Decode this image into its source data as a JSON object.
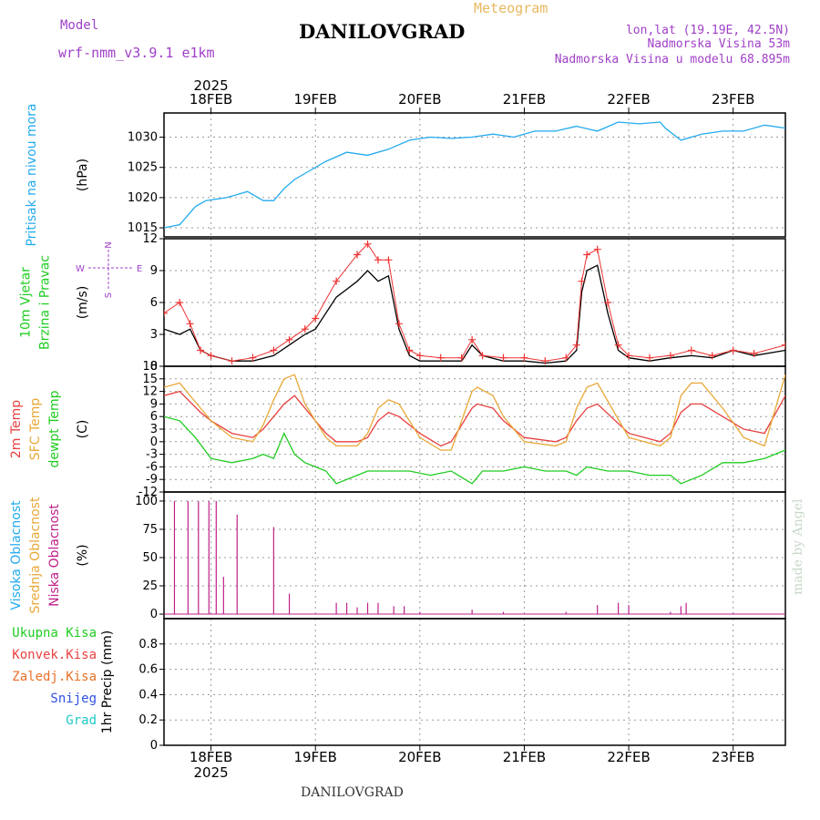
{
  "header": {
    "model_label": "Model",
    "model_name": "wrf-nmm_v3.9.1  e1km",
    "chart_kind": "Meteogram",
    "station": "DANILOVGRAD",
    "lonlat": "lon,lat (19.19E, 42.5N)",
    "elevation": "Nadmorska Visina 53m",
    "model_elevation": "Nadmorska Visina u modelu 68.895m"
  },
  "footer": {
    "station": "DANILOVGRAD",
    "credit": "made by Angel"
  },
  "colors": {
    "pressure": "#22aaee",
    "wind_speed": "#000000",
    "wind_gust": "#ee3333",
    "temp2m": "#e84040",
    "sfc_temp": "#e8a838",
    "dewpoint": "#20cc20",
    "low_cloud": "#c0208a",
    "grid": "#999999"
  },
  "chart_data": {
    "type": "line",
    "x_axis": {
      "year": "2025",
      "range_days": [
        17.55,
        23.5
      ],
      "tick_labels": [
        "18FEB",
        "19FEB",
        "20FEB",
        "21FEB",
        "22FEB",
        "23FEB"
      ],
      "tick_days": [
        18,
        19,
        20,
        21,
        22,
        23
      ]
    },
    "panels": [
      {
        "id": "pressure",
        "ylabel_lines": [
          "Pritisak na nivou mora"
        ],
        "ylabel_colors": [
          "#22aaee"
        ],
        "unit": "(hPa)",
        "ylim": [
          1013.5,
          1034
        ],
        "yticks": [
          1015,
          1020,
          1025,
          1030
        ],
        "series": [
          {
            "key": "pressure",
            "x": [
              17.55,
              17.7,
              17.85,
              17.95,
              18.15,
              18.35,
              18.5,
              18.6,
              18.7,
              18.8,
              18.95,
              19.1,
              19.3,
              19.5,
              19.7,
              19.9,
              20.1,
              20.3,
              20.5,
              20.7,
              20.9,
              21.1,
              21.3,
              21.5,
              21.7,
              21.9,
              22.1,
              22.3,
              22.35,
              22.5,
              22.7,
              22.9,
              23.1,
              23.3,
              23.5
            ],
            "y": [
              1015,
              1015.5,
              1018.5,
              1019.5,
              1020,
              1021,
              1019.5,
              1019.5,
              1021.5,
              1023,
              1024.5,
              1026,
              1027.5,
              1027,
              1028,
              1029.5,
              1030,
              1029.8,
              1030,
              1030.5,
              1030,
              1031,
              1031,
              1031.8,
              1031,
              1032.5,
              1032.2,
              1032.5,
              1031.5,
              1029.5,
              1030.5,
              1031,
              1031,
              1032,
              1031.5
            ]
          }
        ]
      },
      {
        "id": "wind",
        "ylabel_lines": [
          "10m Vjetar",
          "Brzina i Pravac"
        ],
        "ylabel_colors": [
          "#20cc20",
          "#20cc20"
        ],
        "unit": "(m/s)",
        "compass": [
          "N",
          "E",
          "S",
          "W"
        ],
        "ylim": [
          0,
          12
        ],
        "yticks": [
          0,
          3,
          6,
          9,
          12
        ],
        "series": [
          {
            "key": "wind_speed",
            "x": [
              17.55,
              17.7,
              17.8,
              17.9,
              18.0,
              18.2,
              18.4,
              18.6,
              18.75,
              18.9,
              19.0,
              19.2,
              19.4,
              19.5,
              19.6,
              19.7,
              19.8,
              19.9,
              20.0,
              20.2,
              20.4,
              20.5,
              20.6,
              20.8,
              21.0,
              21.2,
              21.4,
              21.5,
              21.55,
              21.6,
              21.7,
              21.8,
              21.9,
              22.0,
              22.2,
              22.4,
              22.6,
              22.8,
              23.0,
              23.2,
              23.5
            ],
            "y": [
              3.5,
              3.0,
              3.5,
              1.5,
              1.0,
              0.5,
              0.5,
              1.0,
              2.0,
              3.0,
              3.5,
              6.5,
              8.0,
              9.0,
              8.0,
              8.5,
              3.5,
              1.0,
              0.5,
              0.5,
              0.5,
              2.0,
              1.0,
              0.5,
              0.5,
              0.3,
              0.5,
              1.5,
              7.0,
              9.0,
              9.5,
              5.0,
              1.5,
              0.8,
              0.5,
              0.8,
              1.0,
              0.8,
              1.5,
              1.0,
              1.5
            ]
          },
          {
            "key": "wind_gust",
            "x": [
              17.55,
              17.7,
              17.8,
              17.9,
              18.0,
              18.2,
              18.4,
              18.6,
              18.75,
              18.9,
              19.0,
              19.2,
              19.4,
              19.5,
              19.6,
              19.7,
              19.8,
              19.9,
              20.0,
              20.2,
              20.4,
              20.5,
              20.6,
              20.8,
              21.0,
              21.2,
              21.4,
              21.5,
              21.55,
              21.6,
              21.7,
              21.8,
              21.9,
              22.0,
              22.2,
              22.4,
              22.6,
              22.8,
              23.0,
              23.2,
              23.5
            ],
            "y": [
              5.0,
              6.0,
              4.0,
              1.5,
              1.0,
              0.5,
              0.8,
              1.5,
              2.5,
              3.5,
              4.5,
              8.0,
              10.5,
              11.5,
              10.0,
              10.0,
              4.0,
              1.5,
              1.0,
              0.8,
              0.8,
              2.5,
              1.0,
              0.8,
              0.8,
              0.5,
              0.8,
              2.0,
              8.0,
              10.5,
              11.0,
              6.0,
              2.0,
              1.0,
              0.8,
              1.0,
              1.5,
              1.0,
              1.5,
              1.2,
              2.0
            ]
          }
        ]
      },
      {
        "id": "temperature",
        "ylabel_lines": [
          "2m Temp",
          "SFC Temp",
          "dewpt Temp"
        ],
        "ylabel_colors": [
          "#e84040",
          "#e8a838",
          "#20cc20"
        ],
        "unit": "(C)",
        "ylim": [
          -12,
          18
        ],
        "yticks": [
          -12,
          -9,
          -6,
          -3,
          0,
          3,
          6,
          9,
          12,
          15,
          18
        ],
        "series": [
          {
            "key": "temp2m",
            "x": [
              17.55,
              17.7,
              17.9,
              18.0,
              18.2,
              18.4,
              18.5,
              18.6,
              18.7,
              18.8,
              18.9,
              19.1,
              19.2,
              19.4,
              19.5,
              19.6,
              19.7,
              19.8,
              20.0,
              20.2,
              20.3,
              20.4,
              20.5,
              20.55,
              20.7,
              20.8,
              21.0,
              21.3,
              21.4,
              21.5,
              21.6,
              21.7,
              22.0,
              22.3,
              22.4,
              22.5,
              22.6,
              22.7,
              22.9,
              23.1,
              23.3,
              23.5
            ],
            "y": [
              11,
              12,
              7,
              5,
              2,
              1,
              3,
              6,
              9,
              11,
              8,
              2,
              0,
              0,
              1,
              5,
              7,
              6,
              2,
              -1,
              0,
              4,
              8,
              9,
              8,
              5,
              1,
              0,
              1,
              5,
              8,
              9,
              2,
              0,
              2,
              7,
              9,
              9,
              6,
              3,
              2,
              11
            ]
          },
          {
            "key": "sfc_temp",
            "x": [
              17.55,
              17.7,
              17.9,
              18.0,
              18.2,
              18.4,
              18.5,
              18.6,
              18.7,
              18.8,
              18.9,
              19.1,
              19.2,
              19.4,
              19.5,
              19.6,
              19.7,
              19.8,
              20.0,
              20.2,
              20.3,
              20.4,
              20.5,
              20.55,
              20.7,
              20.8,
              21.0,
              21.3,
              21.4,
              21.5,
              21.6,
              21.7,
              22.0,
              22.3,
              22.4,
              22.5,
              22.6,
              22.7,
              22.9,
              23.1,
              23.3,
              23.5
            ],
            "y": [
              13,
              14,
              8,
              5,
              1,
              0,
              4,
              10,
              15,
              16,
              9,
              1,
              -1,
              -1,
              2,
              8,
              10,
              9,
              1,
              -2,
              -2,
              5,
              12,
              13,
              11,
              6,
              0,
              -1,
              0,
              8,
              13,
              14,
              1,
              -1,
              1,
              11,
              14,
              14,
              8,
              1,
              -1,
              16
            ]
          },
          {
            "key": "dewpoint",
            "x": [
              17.55,
              17.7,
              17.85,
              18.0,
              18.2,
              18.4,
              18.5,
              18.6,
              18.7,
              18.8,
              18.9,
              19.1,
              19.2,
              19.4,
              19.5,
              19.7,
              19.9,
              20.1,
              20.3,
              20.5,
              20.6,
              20.8,
              21.0,
              21.2,
              21.4,
              21.5,
              21.6,
              21.8,
              22.0,
              22.2,
              22.4,
              22.5,
              22.7,
              22.9,
              23.1,
              23.3,
              23.5
            ],
            "y": [
              6,
              5,
              1,
              -4,
              -5,
              -4,
              -3,
              -4,
              2,
              -3,
              -5,
              -7,
              -10,
              -8,
              -7,
              -7,
              -7,
              -8,
              -7,
              -10,
              -7,
              -7,
              -6,
              -7,
              -7,
              -8,
              -6,
              -7,
              -7,
              -8,
              -8,
              -10,
              -8,
              -5,
              -5,
              -4,
              -2
            ]
          }
        ]
      },
      {
        "id": "cloud",
        "ylabel_lines": [
          "Visoka Oblacnost",
          "Srednja Oblacnost",
          "Niska Oblacnost"
        ],
        "ylabel_colors": [
          "#22aaee",
          "#e8a838",
          "#c0208a"
        ],
        "unit": "(%)",
        "ylim": [
          -4,
          108
        ],
        "yticks": [
          0,
          25,
          50,
          75,
          100
        ],
        "bars": {
          "key": "low_cloud",
          "x": [
            17.65,
            17.78,
            17.88,
            17.98,
            18.05,
            18.12,
            18.25,
            18.6,
            18.75,
            19.2,
            19.3,
            19.4,
            19.5,
            19.6,
            19.75,
            19.85,
            20.0,
            20.5,
            20.8,
            21.4,
            21.7,
            21.9,
            22.0,
            22.4,
            22.5,
            22.55,
            23.0
          ],
          "y": [
            100,
            100,
            100,
            100,
            100,
            33,
            88,
            77,
            18,
            10,
            10,
            6,
            10,
            10,
            7,
            7,
            2,
            4,
            2,
            2,
            8,
            10,
            8,
            2,
            7,
            10,
            1
          ]
        }
      },
      {
        "id": "precip",
        "ylabel_lines": [
          "Ukupna  Kisa",
          "Konvek.Kisa",
          "Zaledj.Kisa",
          "Snijeg",
          "Grad"
        ],
        "ylabel_colors": [
          "#20cc20",
          "#e84040",
          "#e8702a",
          "#3050e0",
          "#20c8c8"
        ],
        "unit": "1hr Precip (mm)",
        "ylim": [
          0,
          1.0
        ],
        "yticks": [
          0,
          0.2,
          0.4,
          0.6,
          0.8
        ],
        "series": []
      }
    ]
  }
}
